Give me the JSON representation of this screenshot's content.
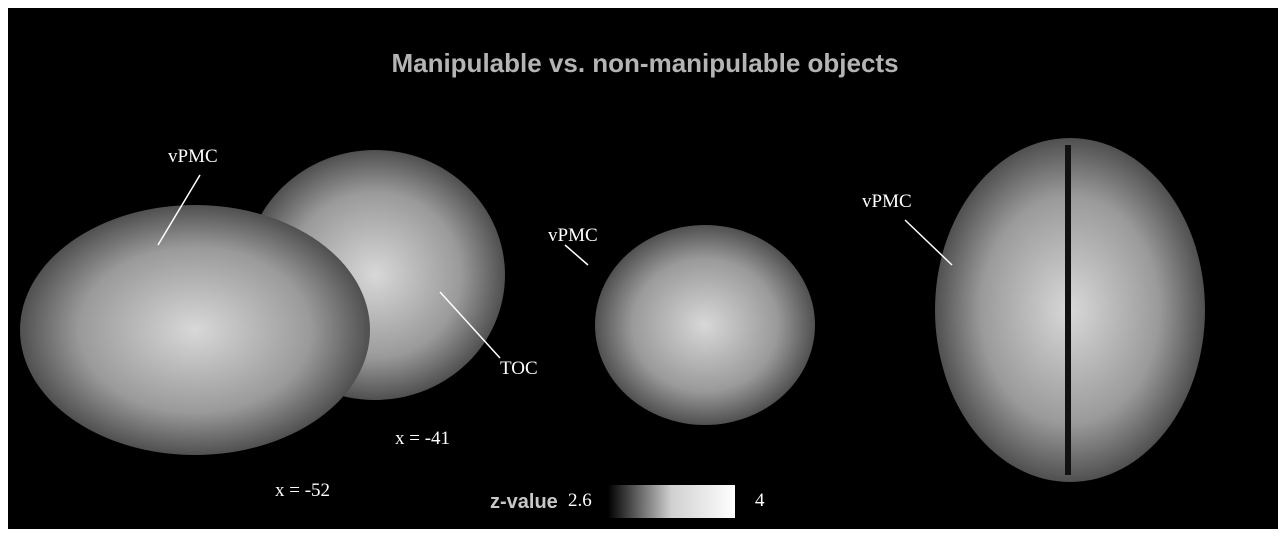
{
  "title": "Manipulable vs. non-manipulable objects",
  "labels": {
    "sagittal_vpmc": "vPMC",
    "toc": "TOC",
    "slice_back": "x = -41",
    "slice_front": "x = -52",
    "coronal_vpmc": "vPMC",
    "axial_vpmc": "vPMC"
  },
  "colorbar": {
    "label": "z-value",
    "min": 2.6,
    "max": 4
  }
}
